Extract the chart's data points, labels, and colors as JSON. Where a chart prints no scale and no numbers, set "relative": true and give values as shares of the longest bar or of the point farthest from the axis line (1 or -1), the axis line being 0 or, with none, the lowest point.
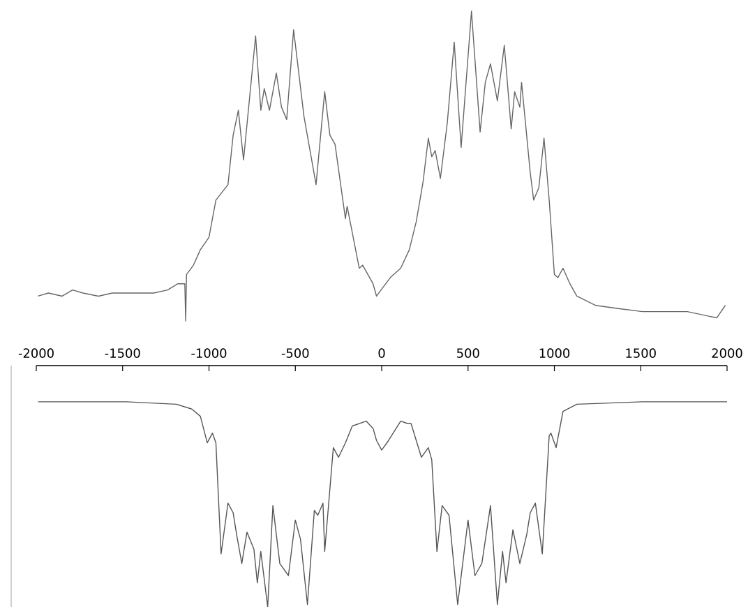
{
  "chart_data": [
    {
      "type": "line",
      "relative": true,
      "tick_labels": false,
      "xlim": [
        -2000,
        2000
      ],
      "x": [
        -1990,
        -1930,
        -1850,
        -1790,
        -1730,
        -1640,
        -1560,
        -1480,
        -1400,
        -1320,
        -1240,
        -1180,
        -1140,
        -1135,
        -1130,
        -1090,
        -1050,
        -1000,
        -960,
        -890,
        -860,
        -830,
        -800,
        -730,
        -700,
        -680,
        -650,
        -610,
        -580,
        -550,
        -510,
        -450,
        -380,
        -330,
        -300,
        -270,
        -210,
        -200,
        -130,
        -110,
        -50,
        -30,
        50,
        110,
        160,
        200,
        240,
        270,
        290,
        310,
        340,
        380,
        420,
        460,
        520,
        570,
        600,
        630,
        670,
        710,
        750,
        770,
        800,
        810,
        860,
        880,
        910,
        940,
        970,
        1000,
        1020,
        1050,
        1090,
        1130,
        1240,
        1370,
        1510,
        1640,
        1770,
        1940,
        1990
      ],
      "series": [
        {
          "color": "#666666",
          "values": [
            0.08,
            0.09,
            0.08,
            0.1,
            0.09,
            0.08,
            0.09,
            0.09,
            0.09,
            0.09,
            0.1,
            0.12,
            0.12,
            0,
            0.15,
            0.18,
            0.23,
            0.27,
            0.39,
            0.44,
            0.6,
            0.68,
            0.52,
            0.92,
            0.68,
            0.75,
            0.68,
            0.8,
            0.69,
            0.65,
            0.94,
            0.66,
            0.44,
            0.74,
            0.6,
            0.57,
            0.33,
            0.37,
            0.17,
            0.18,
            0.12,
            0.08,
            0.14,
            0.17,
            0.23,
            0.32,
            0.45,
            0.59,
            0.53,
            0.55,
            0.46,
            0.64,
            0.9,
            0.56,
            1.0,
            0.61,
            0.77,
            0.83,
            0.71,
            0.89,
            0.62,
            0.74,
            0.69,
            0.77,
            0.48,
            0.39,
            0.43,
            0.59,
            0.39,
            0.15,
            0.14,
            0.17,
            0.12,
            0.08,
            0.05,
            0.04,
            0.03,
            0.03,
            0.03,
            0.01,
            0.05
          ]
        }
      ]
    },
    {
      "type": "line",
      "relative": true,
      "tick_labels": "x",
      "xlim": [
        -2000,
        2000
      ],
      "xticks": [
        -2000,
        -1500,
        -1000,
        -500,
        0,
        500,
        1000,
        1500,
        2000
      ],
      "x": [
        -1990,
        -1480,
        -1190,
        -1100,
        -1050,
        -1010,
        -980,
        -960,
        -930,
        -890,
        -860,
        -840,
        -810,
        -780,
        -740,
        -720,
        -700,
        -660,
        -630,
        -590,
        -540,
        -500,
        -470,
        -430,
        -390,
        -370,
        -340,
        -330,
        -280,
        -250,
        -210,
        -170,
        -90,
        -50,
        -30,
        0,
        40,
        110,
        150,
        170,
        230,
        270,
        290,
        320,
        350,
        390,
        440,
        500,
        540,
        580,
        630,
        670,
        700,
        720,
        760,
        800,
        840,
        860,
        890,
        930,
        970,
        980,
        1010,
        1050,
        1130,
        1510,
        2000
      ],
      "series": [
        {
          "color": "#555555",
          "values": [
            -0.15,
            -0.15,
            -0.16,
            -0.18,
            -0.21,
            -0.32,
            -0.28,
            -0.32,
            -0.78,
            -0.57,
            -0.61,
            -0.7,
            -0.82,
            -0.69,
            -0.76,
            -0.9,
            -0.77,
            -1,
            -0.58,
            -0.82,
            -0.87,
            -0.64,
            -0.72,
            -0.99,
            -0.6,
            -0.62,
            -0.57,
            -0.77,
            -0.34,
            -0.38,
            -0.32,
            -0.25,
            -0.23,
            -0.26,
            -0.31,
            -0.35,
            -0.31,
            -0.23,
            -0.24,
            -0.24,
            -0.38,
            -0.34,
            -0.39,
            -0.77,
            -0.58,
            -0.62,
            -0.99,
            -0.64,
            -0.87,
            -0.82,
            -0.58,
            -0.99,
            -0.77,
            -0.9,
            -0.68,
            -0.82,
            -0.7,
            -0.61,
            -0.57,
            -0.78,
            -0.29,
            -0.28,
            -0.34,
            -0.19,
            -0.16,
            -0.15,
            -0.15
          ]
        }
      ]
    }
  ]
}
